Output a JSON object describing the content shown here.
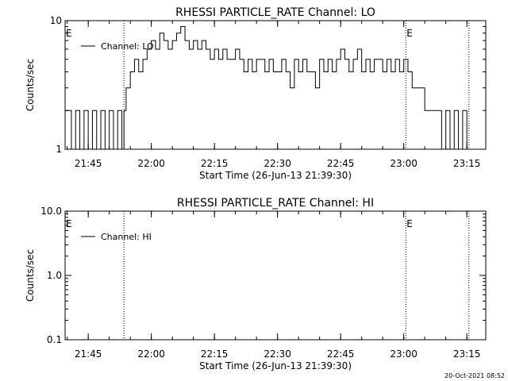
{
  "chart_data": [
    {
      "type": "line",
      "title": "RHESSI PARTICLE_RATE Channel: LO",
      "xlabel": "Start Time (26-Jun-13 21:39:30)",
      "ylabel": "Counts/sec",
      "xlim": [
        "21:39:30",
        "23:19:30"
      ],
      "ylim": [
        1,
        10
      ],
      "yscale": "log",
      "x_ticks": [
        "21:45",
        "22:00",
        "22:15",
        "22:30",
        "22:45",
        "23:00",
        "23:15"
      ],
      "y_ticks": [
        "1",
        "10"
      ],
      "grid": false,
      "legend": "top-left",
      "markers": [
        {
          "label": "E",
          "time": "21:39:30"
        },
        {
          "label": "",
          "time": "21:53:30"
        },
        {
          "label": "E",
          "time": "23:00:30"
        },
        {
          "label": "",
          "time": "23:15:30"
        }
      ],
      "series": [
        {
          "name": "Channel: LO",
          "x": [
            "21:39:30",
            "21:41:00",
            "21:42:00",
            "21:43:00",
            "21:44:00",
            "21:45:00",
            "21:46:00",
            "21:47:00",
            "21:48:00",
            "21:49:00",
            "21:50:00",
            "21:51:00",
            "21:52:00",
            "21:53:00",
            "21:53:30",
            "21:54:00",
            "21:55:00",
            "21:56:00",
            "21:57:00",
            "21:58:00",
            "21:59:00",
            "22:00:00",
            "22:01:00",
            "22:02:00",
            "22:03:00",
            "22:04:00",
            "22:05:00",
            "22:06:00",
            "22:07:00",
            "22:08:00",
            "22:09:00",
            "22:10:00",
            "22:11:00",
            "22:12:00",
            "22:13:00",
            "22:14:00",
            "22:15:00",
            "22:16:00",
            "22:17:00",
            "22:18:00",
            "22:19:00",
            "22:20:00",
            "22:21:00",
            "22:22:00",
            "22:23:00",
            "22:24:00",
            "22:25:00",
            "22:26:00",
            "22:27:00",
            "22:28:00",
            "22:29:00",
            "22:30:00",
            "22:31:00",
            "22:32:00",
            "22:33:00",
            "22:34:00",
            "22:35:00",
            "22:36:00",
            "22:37:00",
            "22:38:00",
            "22:39:00",
            "22:40:00",
            "22:41:00",
            "22:42:00",
            "22:43:00",
            "22:44:00",
            "22:45:00",
            "22:46:00",
            "22:47:00",
            "22:48:00",
            "22:49:00",
            "22:50:00",
            "22:51:00",
            "22:52:00",
            "22:53:00",
            "22:54:00",
            "22:55:00",
            "22:56:00",
            "22:57:00",
            "22:58:00",
            "22:59:00",
            "23:00:00",
            "23:01:00",
            "23:02:00",
            "23:03:00",
            "23:04:00",
            "23:05:00",
            "23:06:00",
            "23:07:00",
            "23:08:00",
            "23:09:00",
            "23:10:00",
            "23:11:00",
            "23:12:00",
            "23:13:00",
            "23:14:00",
            "23:15:00"
          ],
          "values": [
            2,
            1,
            2,
            1,
            2,
            1,
            2,
            1,
            2,
            1,
            2,
            1,
            2,
            1,
            2,
            3,
            4,
            5,
            4,
            5,
            6,
            7,
            6,
            8,
            7,
            6,
            7,
            8,
            9,
            7,
            6,
            7,
            6,
            7,
            6,
            5,
            6,
            5,
            6,
            5,
            5,
            6,
            5,
            4,
            5,
            4,
            5,
            5,
            4,
            5,
            4,
            4,
            5,
            4,
            3,
            5,
            4,
            5,
            4,
            4,
            3,
            5,
            4,
            5,
            4,
            5,
            6,
            5,
            4,
            5,
            6,
            4,
            5,
            4,
            5,
            5,
            4,
            5,
            4,
            5,
            4,
            5,
            4,
            3,
            3,
            3,
            2,
            2,
            2,
            2,
            1,
            2,
            1,
            2,
            1,
            2,
            1
          ]
        }
      ]
    },
    {
      "type": "line",
      "title": "RHESSI PARTICLE_RATE Channel: HI",
      "xlabel": "Start Time (26-Jun-13 21:39:30)",
      "ylabel": "Counts/sec",
      "xlim": [
        "21:39:30",
        "23:19:30"
      ],
      "ylim": [
        0.1,
        10
      ],
      "yscale": "log",
      "x_ticks": [
        "21:45",
        "22:00",
        "22:15",
        "22:30",
        "22:45",
        "23:00",
        "23:15"
      ],
      "y_ticks": [
        "0.1",
        "1.0",
        "10.0"
      ],
      "grid": false,
      "legend": "top-left",
      "markers": [
        {
          "label": "E",
          "time": "21:39:30"
        },
        {
          "label": "",
          "time": "21:53:30"
        },
        {
          "label": "E",
          "time": "23:00:30"
        },
        {
          "label": "",
          "time": "23:15:30"
        }
      ],
      "series": [
        {
          "name": "Channel: HI",
          "x": [],
          "values": []
        }
      ]
    }
  ],
  "footer_timestamp": "20-Oct-2021 08:52"
}
